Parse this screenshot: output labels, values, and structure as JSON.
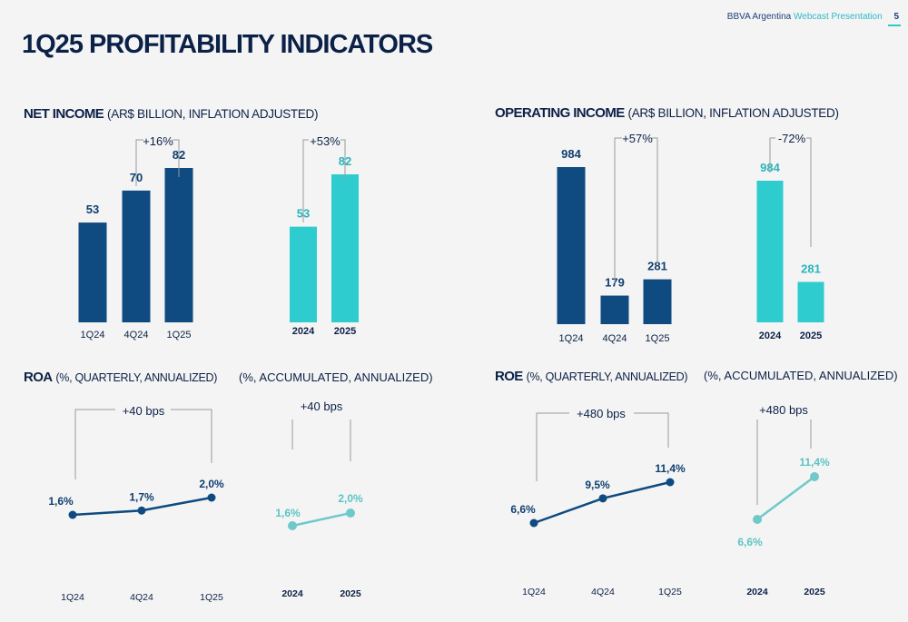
{
  "header": {
    "brand": "BBVA Argentina",
    "presentation": "Webcast Presentation",
    "page_number": "5"
  },
  "page_title": "1Q25 PROFITABILITY INDICATORS",
  "sections": {
    "net_income": {
      "title": "NET INCOME",
      "subtitle": "(AR$ BILLION, INFLATION ADJUSTED)"
    },
    "operating_income": {
      "title": "OPERATING INCOME",
      "subtitle": "(AR$ BILLION, INFLATION ADJUSTED)"
    },
    "roa": {
      "title": "ROA",
      "subtitle": "(%, QUARTERLY, ANNUALIZED)",
      "acc_subtitle": "(%, ACCUMULATED, ANNUALIZED)"
    },
    "roe": {
      "title": "ROE",
      "subtitle": "(%, QUARTERLY, ANNUALIZED)",
      "acc_subtitle": "(%, ACCUMULATED, ANNUALIZED)"
    }
  },
  "colors": {
    "navy": "#0f4a80",
    "teal": "#2ecccf",
    "lightteal": "#6fc9c9",
    "text": "#0c2147"
  },
  "chart_data": [
    {
      "id": "ni_q",
      "type": "bar",
      "color": "navy",
      "categories": [
        "1Q24",
        "4Q24",
        "1Q25"
      ],
      "values": [
        53,
        70,
        82
      ],
      "labels": [
        "53",
        "70",
        "82"
      ],
      "ylim": [
        0,
        100
      ],
      "annotation": "+16%"
    },
    {
      "id": "ni_y",
      "type": "bar",
      "color": "teal",
      "categories": [
        "2024",
        "2025"
      ],
      "values": [
        53,
        82
      ],
      "labels": [
        "53",
        "82"
      ],
      "ylim": [
        0,
        100
      ],
      "annotation": "+53%"
    },
    {
      "id": "oi_q",
      "type": "bar",
      "color": "navy",
      "categories": [
        "1Q24",
        "4Q24",
        "1Q25"
      ],
      "values": [
        984,
        179,
        281
      ],
      "labels": [
        "984",
        "179",
        "281"
      ],
      "ylim": [
        0,
        1150
      ],
      "annotation": "+57%"
    },
    {
      "id": "oi_y",
      "type": "bar",
      "color": "teal",
      "categories": [
        "2024",
        "2025"
      ],
      "values": [
        984,
        281
      ],
      "labels": [
        "984",
        "281"
      ],
      "ylim": [
        0,
        1150
      ],
      "annotation": "-72%"
    },
    {
      "id": "roa_q",
      "type": "line",
      "color": "navy",
      "categories": [
        "1Q24",
        "4Q24",
        "1Q25"
      ],
      "values": [
        1.6,
        1.7,
        2.0
      ],
      "labels": [
        "1,6%",
        "1,7%",
        "2,0%"
      ],
      "annotation": "+40 bps"
    },
    {
      "id": "roa_y",
      "type": "line",
      "color": "lightteal",
      "categories": [
        "2024",
        "2025"
      ],
      "values": [
        1.6,
        2.0
      ],
      "labels": [
        "1,6%",
        "2,0%"
      ],
      "annotation": "+40 bps"
    },
    {
      "id": "roe_q",
      "type": "line",
      "color": "navy",
      "categories": [
        "1Q24",
        "4Q24",
        "1Q25"
      ],
      "values": [
        6.6,
        9.5,
        11.4
      ],
      "labels": [
        "6,6%",
        "9,5%",
        "11,4%"
      ],
      "annotation": "+480 bps"
    },
    {
      "id": "roe_y",
      "type": "line",
      "color": "lightteal",
      "categories": [
        "2024",
        "2025"
      ],
      "values": [
        6.6,
        11.4
      ],
      "labels": [
        "6,6%",
        "11,4%"
      ],
      "annotation": "+480 bps"
    }
  ]
}
